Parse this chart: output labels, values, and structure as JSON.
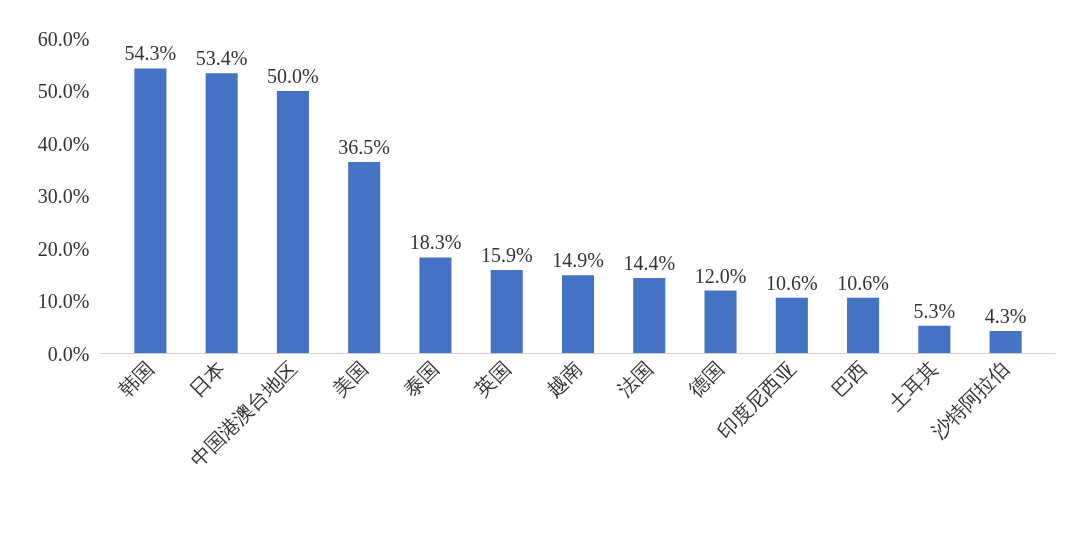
{
  "chart_data": {
    "type": "bar",
    "categories": [
      "韩国",
      "日本",
      "中国港澳台地区",
      "美国",
      "泰国",
      "英国",
      "越南",
      "法国",
      "德国",
      "印度尼西亚",
      "巴西",
      "土耳其",
      "沙特阿拉伯"
    ],
    "values": [
      54.3,
      53.4,
      50.0,
      36.5,
      18.3,
      15.9,
      14.9,
      14.4,
      12.0,
      10.6,
      10.6,
      5.3,
      4.3
    ],
    "value_labels": [
      "54.3%",
      "53.4%",
      "50.0%",
      "36.5%",
      "18.3%",
      "15.9%",
      "14.9%",
      "14.4%",
      "12.0%",
      "10.6%",
      "10.6%",
      "5.3%",
      "4.3%"
    ],
    "color": "#4472c4",
    "ylim": [
      0,
      60
    ],
    "yticks": [
      {
        "value": 0,
        "label": "0.0%"
      },
      {
        "value": 10,
        "label": "10.0%"
      },
      {
        "value": 20,
        "label": "20.0%"
      },
      {
        "value": 30,
        "label": "30.0%"
      },
      {
        "value": 40,
        "label": "40.0%"
      },
      {
        "value": 50,
        "label": "50.0%"
      },
      {
        "value": 60,
        "label": "60.0%"
      }
    ],
    "grid": false
  }
}
